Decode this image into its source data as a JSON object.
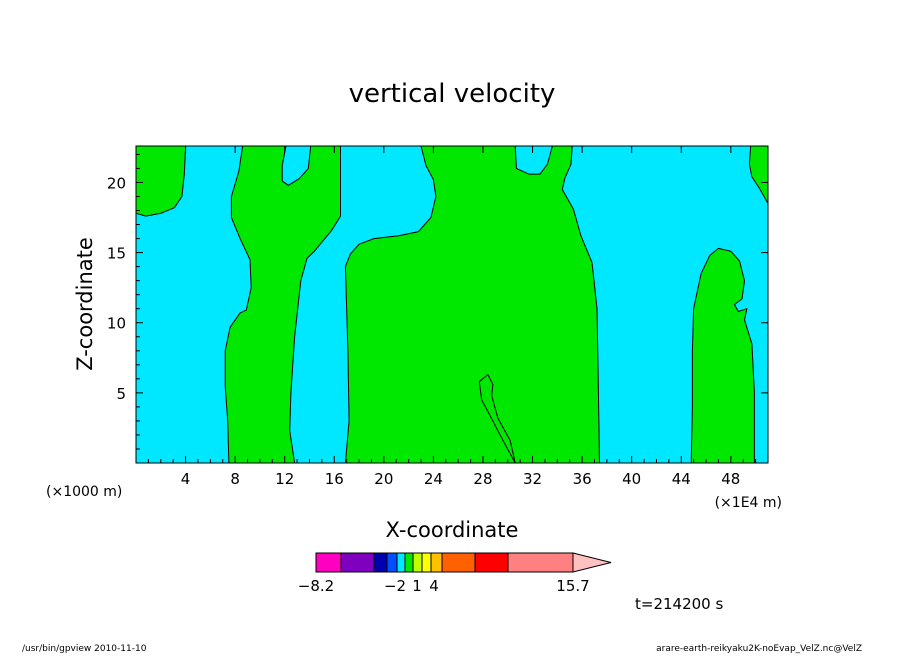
{
  "chart_data": {
    "type": "contour",
    "title": "vertical velocity",
    "xlabel": "X-coordinate",
    "ylabel": "Z-coordinate",
    "x_unit": "(×1E4 m)",
    "y_unit": "(×1000 m)",
    "xlim": [
      0,
      51
    ],
    "ylim": [
      0,
      22.6
    ],
    "x_ticks": [
      4,
      8,
      12,
      16,
      20,
      24,
      28,
      32,
      36,
      40,
      44,
      48
    ],
    "y_ticks": [
      5,
      10,
      15,
      20
    ],
    "fill_colors": {
      "negative": "#00e8ff",
      "positive": "#00e800"
    },
    "regions": [
      {
        "sign": "positive",
        "outline": [
          [
            0,
            22.6
          ],
          [
            4,
            22.6
          ],
          [
            3.9,
            20.6
          ],
          [
            3.7,
            19.0
          ],
          [
            3.1,
            18.2
          ],
          [
            2.0,
            17.8
          ],
          [
            0.8,
            17.6
          ],
          [
            0,
            17.8
          ]
        ]
      },
      {
        "sign": "positive",
        "outline": [
          [
            7.5,
            0
          ],
          [
            7.4,
            3
          ],
          [
            7.2,
            5.5
          ],
          [
            7.2,
            8
          ],
          [
            7.6,
            9.7
          ],
          [
            8.4,
            10.7
          ],
          [
            8.9,
            10.9
          ],
          [
            9.3,
            12.5
          ],
          [
            9.2,
            14.5
          ],
          [
            8.4,
            16.0
          ],
          [
            7.7,
            17.5
          ],
          [
            7.7,
            19.0
          ],
          [
            8.3,
            20.8
          ],
          [
            8.6,
            22.6
          ],
          [
            12.1,
            22.6
          ],
          [
            11.8,
            21.2
          ],
          [
            11.8,
            20.1
          ],
          [
            12.3,
            19.8
          ],
          [
            13.2,
            20.3
          ],
          [
            13.9,
            21.0
          ],
          [
            14.1,
            22.6
          ],
          [
            16.5,
            22.6
          ],
          [
            16.5,
            17.6
          ],
          [
            15.8,
            16.6
          ],
          [
            14.4,
            15.1
          ],
          [
            13.8,
            14.6
          ],
          [
            13.3,
            13.0
          ],
          [
            12.8,
            9.0
          ],
          [
            12.5,
            5.0
          ],
          [
            12.4,
            2.3
          ],
          [
            12.8,
            0
          ]
        ]
      },
      {
        "sign": "positive",
        "outline": [
          [
            16.9,
            0
          ],
          [
            17.2,
            3
          ],
          [
            17.1,
            8
          ],
          [
            16.9,
            14.0
          ],
          [
            17.3,
            14.9
          ],
          [
            18.0,
            15.6
          ],
          [
            19.2,
            16.0
          ],
          [
            21.2,
            16.2
          ],
          [
            22.8,
            16.5
          ],
          [
            23.8,
            17.5
          ],
          [
            24.2,
            19.0
          ],
          [
            24.0,
            20.2
          ],
          [
            23.4,
            21.2
          ],
          [
            23.0,
            22.6
          ],
          [
            30.6,
            22.6
          ],
          [
            30.7,
            21.0
          ],
          [
            31.7,
            20.6
          ],
          [
            32.6,
            20.6
          ],
          [
            33.2,
            21.3
          ],
          [
            33.6,
            22.6
          ],
          [
            35.2,
            22.6
          ],
          [
            35.1,
            21.3
          ],
          [
            34.6,
            20.3
          ],
          [
            34.4,
            19.5
          ],
          [
            35.3,
            18.1
          ],
          [
            35.9,
            16.2
          ],
          [
            36.8,
            14.3
          ],
          [
            37.2,
            11.0
          ],
          [
            37.3,
            6.0
          ],
          [
            37.4,
            0
          ],
          [
            30.6,
            0
          ],
          [
            29.5,
            1.8
          ],
          [
            28.5,
            3.5
          ],
          [
            27.9,
            4.5
          ],
          [
            27.7,
            5.8
          ],
          [
            28.4,
            6.3
          ],
          [
            28.8,
            5.6
          ],
          [
            28.7,
            4.8
          ],
          [
            29.2,
            3.2
          ],
          [
            30.2,
            1.6
          ],
          [
            30.6,
            0
          ]
        ]
      },
      {
        "sign": "positive",
        "outline": [
          [
            44.8,
            0
          ],
          [
            44.9,
            4
          ],
          [
            44.9,
            8
          ],
          [
            45.0,
            11.0
          ],
          [
            45.6,
            13.5
          ],
          [
            46.3,
            14.8
          ],
          [
            47.0,
            15.3
          ],
          [
            48.0,
            15.1
          ],
          [
            48.7,
            14.4
          ],
          [
            49.1,
            13.0
          ],
          [
            48.9,
            11.7
          ],
          [
            48.3,
            11.3
          ],
          [
            48.6,
            10.8
          ],
          [
            49.3,
            11.0
          ],
          [
            49.1,
            10.2
          ],
          [
            49.7,
            8.5
          ],
          [
            49.9,
            5.0
          ],
          [
            49.9,
            0
          ]
        ]
      },
      {
        "sign": "positive",
        "outline": [
          [
            49.6,
            22.6
          ],
          [
            51,
            22.6
          ],
          [
            51,
            18.5
          ],
          [
            50.3,
            19.6
          ],
          [
            49.7,
            20.4
          ],
          [
            49.5,
            21.3
          ]
        ]
      }
    ],
    "colorbar": {
      "colors": [
        "#ff00c0",
        "#8000c0",
        "#0000b0",
        "#0050ff",
        "#00e8ff",
        "#00e800",
        "#c0ff00",
        "#ffff00",
        "#ffc000",
        "#ff6000",
        "#ff0000",
        "#ff8080",
        "#ffc0c0"
      ],
      "labels": [
        "−8.2",
        "−2",
        "1",
        "4",
        "15.7"
      ]
    },
    "time_label": "t=214200 s"
  },
  "footer": {
    "left": "/usr/bin/gpview  2010-11-10",
    "right": "arare-earth-reikyaku2K-noEvap_VelZ.nc@VelZ"
  }
}
